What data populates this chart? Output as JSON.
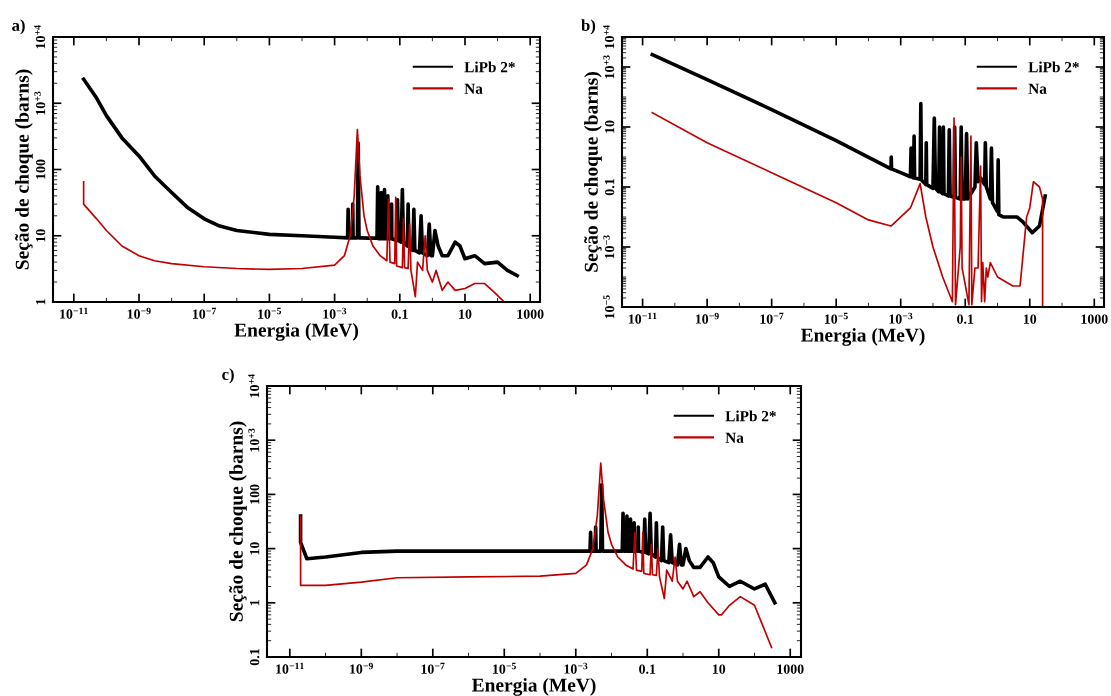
{
  "chart_data": [
    {
      "type": "line",
      "title": "a)",
      "xlabel": "Energia (MeV)",
      "ylabel": "Seção de choque (barns)",
      "log": "xy",
      "legend": "top right",
      "grid": false,
      "xlim": [
        2.3e-12,
        2000
      ],
      "ylim": [
        1,
        10000
      ],
      "xticks": [
        {
          "value": 1e-11,
          "label": "10$^{−11}$"
        },
        {
          "value": 1e-09,
          "label": "10$^{−9}$"
        },
        {
          "value": 1e-07,
          "label": "10$^{−7}$"
        },
        {
          "value": 1e-05,
          "label": "10$^{−5}$"
        },
        {
          "value": 0.001,
          "label": "10$^{−3}$"
        },
        0.1,
        10,
        1000
      ],
      "yticks": [
        1,
        10,
        100,
        {
          "value": 1000,
          "label": "10$^{+3}$"
        },
        {
          "value": 10000,
          "label": "10$^{+4}$"
        }
      ],
      "series": [
        {
          "name": "LiPb 2*",
          "color": "#000000",
          "x": [
            2e-11,
            5e-11,
            1e-10,
            3e-10,
            1e-09,
            3e-09,
            1e-08,
            3e-08,
            1e-07,
            3e-07,
            1e-06,
            1e-05,
            0.0001,
            0.001,
            0.0025,
            0.0026,
            0.0027,
            0.0035,
            0.0036,
            0.0037,
            0.005,
            0.0053,
            0.0056,
            0.007,
            0.01,
            0.02,
            0.021,
            0.022,
            0.026,
            0.027,
            0.028,
            0.033,
            0.034,
            0.035,
            0.042,
            0.043,
            0.044,
            0.055,
            0.056,
            0.057,
            0.08,
            0.085,
            0.09,
            0.11,
            0.12,
            0.13,
            0.17,
            0.18,
            0.19,
            0.25,
            0.27,
            0.29,
            0.4,
            0.45,
            0.5,
            0.7,
            0.8,
            0.9,
            1,
            1.2,
            1.5,
            2,
            3,
            5,
            7,
            10,
            20,
            40,
            100,
            200,
            400
          ],
          "values": [
            2300,
            1200,
            650,
            300,
            160,
            80,
            45,
            27,
            18,
            14,
            12,
            10.5,
            10,
            9.5,
            9.3,
            25,
            9.3,
            9.3,
            30,
            9.3,
            9.3,
            250,
            9.3,
            9.3,
            9.2,
            9.2,
            55,
            9,
            9,
            45,
            9,
            9,
            50,
            9,
            9,
            40,
            9,
            9,
            30,
            9,
            8.5,
            35,
            8.5,
            8,
            50,
            8,
            7,
            30,
            7,
            6,
            25,
            6,
            5.5,
            20,
            5.5,
            5,
            15,
            5,
            5,
            12,
            7,
            5,
            5,
            8,
            7,
            4.5,
            5,
            3.8,
            4,
            3,
            2.5
          ]
        },
        {
          "name": "Na",
          "color": "#c00000",
          "x": [
            2e-11,
            2e-11,
            5e-11,
            1e-10,
            3e-10,
            1e-09,
            3e-09,
            1e-08,
            1e-07,
            1e-06,
            1e-05,
            0.0001,
            0.001,
            0.002,
            0.003,
            0.004,
            0.005,
            0.006,
            0.008,
            0.01,
            0.015,
            0.025,
            0.04,
            0.045,
            0.05,
            0.07,
            0.075,
            0.08,
            0.12,
            0.13,
            0.14,
            0.18,
            0.2,
            0.22,
            0.3,
            0.35,
            0.5,
            0.6,
            0.7,
            1,
            1.3,
            2,
            3,
            5,
            10,
            20,
            40,
            80,
            160
          ],
          "values": [
            65,
            30,
            18,
            12,
            7,
            5,
            4.2,
            3.8,
            3.4,
            3.2,
            3.1,
            3.2,
            3.6,
            5,
            10,
            40,
            400,
            80,
            20,
            12,
            7,
            5,
            4.2,
            35,
            4,
            3.8,
            38,
            3.5,
            3.3,
            18,
            3.3,
            3.2,
            15,
            3,
            1.2,
            4,
            3,
            10,
            3,
            2,
            3,
            1.5,
            2,
            1.5,
            1.6,
            1.9,
            1.9,
            1.4,
            1
          ]
        }
      ]
    },
    {
      "type": "line",
      "title": "b)",
      "xlabel": "Energia (MeV)",
      "ylabel": "Seção de choque (barns)",
      "log": "xy",
      "legend": "top right",
      "grid": false,
      "xlim": [
        2.3e-12,
        2000
      ],
      "ylim": [
        1e-05,
        10000
      ],
      "xticks": [
        {
          "value": 1e-11,
          "label": "10$^{−11}$"
        },
        {
          "value": 1e-09,
          "label": "10$^{−9}$"
        },
        {
          "value": 1e-07,
          "label": "10$^{−7}$"
        },
        {
          "value": 1e-05,
          "label": "10$^{−5}$"
        },
        {
          "value": 0.001,
          "label": "10$^{−3}$"
        },
        0.1,
        10,
        1000
      ],
      "yticks": [
        {
          "value": 1e-05,
          "label": "10$^{−5}$"
        },
        {
          "value": 0.001,
          "label": "10$^{−3}$"
        },
        0.1,
        10,
        {
          "value": 1000,
          "label": "10$^{+3}$"
        },
        {
          "value": 10000,
          "label": "10$^{+4}$"
        }
      ],
      "series": [
        {
          "name": "LiPb 2*",
          "color": "#000000",
          "x": [
            2e-11,
            1e-09,
            1e-07,
            1e-05,
            0.0005,
            0.00051,
            0.00052,
            0.001,
            0.002,
            0.0021,
            0.0022,
            0.0025,
            0.0026,
            0.0027,
            0.004,
            0.0042,
            0.0044,
            0.006,
            0.0062,
            0.0064,
            0.01,
            0.011,
            0.012,
            0.015,
            0.016,
            0.017,
            0.02,
            0.021,
            0.022,
            0.03,
            0.032,
            0.034,
            0.045,
            0.047,
            0.05,
            0.07,
            0.075,
            0.08,
            0.1,
            0.11,
            0.12,
            0.2,
            0.22,
            0.25,
            0.3,
            0.4,
            0.42,
            0.45,
            0.6,
            0.65,
            0.7,
            1,
            1.05,
            1.1,
            1.5,
            4,
            6,
            12,
            20,
            30
          ],
          "values": [
            2600,
            380,
            38,
            3.5,
            0.4,
            1,
            0.4,
            0.3,
            0.22,
            2,
            0.22,
            0.2,
            5,
            0.2,
            0.18,
            60,
            0.17,
            0.12,
            3,
            0.12,
            0.09,
            20,
            0.09,
            0.07,
            10,
            0.07,
            0.06,
            10,
            0.06,
            0.05,
            8,
            0.05,
            0.045,
            10,
            0.045,
            0.04,
            10,
            0.04,
            0.04,
            6,
            0.04,
            0.1,
            3,
            0.15,
            0.2,
            0.12,
            3,
            0.1,
            0.04,
            2,
            0.03,
            0.015,
            0.8,
            0.012,
            0.01,
            0.01,
            0.007,
            0.003,
            0.005,
            0.05
          ]
        },
        {
          "name": "Na",
          "color": "#c00000",
          "x": [
            2e-11,
            1e-09,
            1e-07,
            1e-05,
            0.0001,
            0.0005,
            0.002,
            0.004,
            0.006,
            0.01,
            0.02,
            0.04,
            0.045,
            0.05,
            0.07,
            0.075,
            0.08,
            0.13,
            0.15,
            0.16,
            0.2,
            0.25,
            0.3,
            0.32,
            0.35,
            0.4,
            0.45,
            0.5,
            0.6,
            1,
            3,
            5,
            8,
            10,
            13,
            20,
            25,
            25
          ],
          "values": [
            30,
            3,
            0.3,
            0.03,
            0.008,
            0.005,
            0.02,
            0.13,
            0.01,
            0.001,
            0.0001,
            1.5e-05,
            20,
            1.2e-05,
            0.001,
            1,
            0.0002,
            1.2e-05,
            5,
            1.2e-05,
            0.0002,
            0.0002,
            0.5,
            1.5e-05,
            0.0003,
            1.5e-05,
            0.0002,
            0.0001,
            0.0003,
            0.0001,
            5e-05,
            5e-05,
            0.01,
            0.02,
            0.15,
            0.1,
            0.04,
            1e-05
          ]
        }
      ]
    },
    {
      "type": "line",
      "title": "c)",
      "xlabel": "Energia (MeV)",
      "ylabel": "Seção de choque (barns)",
      "log": "xy",
      "legend": "top right",
      "grid": false,
      "xlim": [
        2.3e-12,
        2000
      ],
      "ylim": [
        0.1,
        10000
      ],
      "xticks": [
        {
          "value": 1e-11,
          "label": "10$^{−11}$"
        },
        {
          "value": 1e-09,
          "label": "10$^{−9}$"
        },
        {
          "value": 1e-07,
          "label": "10$^{−7}$"
        },
        {
          "value": 1e-05,
          "label": "10$^{−5}$"
        },
        {
          "value": 0.001,
          "label": "10$^{−3}$"
        },
        0.1,
        10,
        1000
      ],
      "yticks": [
        0.1,
        1,
        10,
        100,
        {
          "value": 1000,
          "label": "10$^{+3}$"
        },
        {
          "value": 10000,
          "label": "10$^{+4}$"
        }
      ],
      "series": [
        {
          "name": "LiPb 2*",
          "color": "#000000",
          "x": [
            2e-11,
            2e-11,
            3e-11,
            1e-10,
            1e-09,
            1e-08,
            1e-06,
            0.0001,
            0.001,
            0.0025,
            0.0026,
            0.0027,
            0.0035,
            0.0036,
            0.0037,
            0.005,
            0.0053,
            0.0056,
            0.007,
            0.01,
            0.02,
            0.021,
            0.022,
            0.026,
            0.027,
            0.028,
            0.033,
            0.034,
            0.035,
            0.042,
            0.043,
            0.044,
            0.055,
            0.056,
            0.057,
            0.08,
            0.085,
            0.09,
            0.11,
            0.12,
            0.13,
            0.17,
            0.18,
            0.19,
            0.25,
            0.27,
            0.29,
            0.4,
            0.45,
            0.5,
            0.7,
            0.8,
            0.9,
            1,
            1.2,
            1.5,
            2,
            3,
            5,
            7,
            10,
            20,
            40,
            100,
            200,
            370
          ],
          "values": [
            40,
            13,
            6.5,
            7,
            8.5,
            9,
            9,
            9,
            9,
            9,
            20,
            9,
            9,
            25,
            9,
            9,
            150,
            9,
            9,
            9,
            9,
            45,
            9,
            9,
            40,
            9,
            9,
            35,
            9,
            9,
            30,
            9,
            9,
            25,
            9,
            8.5,
            35,
            8.5,
            8,
            45,
            8,
            7,
            30,
            7,
            6,
            25,
            6,
            5.5,
            18,
            5.5,
            5,
            12,
            5,
            5,
            10,
            6,
            4.5,
            4.5,
            7,
            5.5,
            3,
            2,
            2.5,
            1.8,
            2.2,
            1
          ]
        },
        {
          "name": "Na",
          "color": "#c00000",
          "x": [
            2e-11,
            2e-11,
            1e-10,
            1e-09,
            1e-08,
            1e-06,
            0.0001,
            0.001,
            0.002,
            0.003,
            0.004,
            0.005,
            0.006,
            0.008,
            0.01,
            0.015,
            0.025,
            0.04,
            0.045,
            0.05,
            0.07,
            0.075,
            0.08,
            0.12,
            0.13,
            0.14,
            0.18,
            0.2,
            0.22,
            0.3,
            0.35,
            0.5,
            0.6,
            0.7,
            1,
            1.3,
            2,
            3,
            5,
            10,
            12,
            20,
            40,
            100,
            300
          ],
          "values": [
            40,
            2.1,
            2.1,
            2.4,
            2.9,
            3,
            3.1,
            3.5,
            5,
            10,
            40,
            380,
            80,
            20,
            12,
            7,
            5,
            4.2,
            20,
            4,
            3.8,
            20,
            3.5,
            3.3,
            12,
            3.3,
            3.2,
            10,
            3,
            1.2,
            4,
            2.5,
            7,
            2.5,
            1.8,
            2.5,
            1.3,
            1.6,
            1,
            0.6,
            0.6,
            0.9,
            1.3,
            0.9,
            0.15
          ]
        }
      ]
    }
  ]
}
